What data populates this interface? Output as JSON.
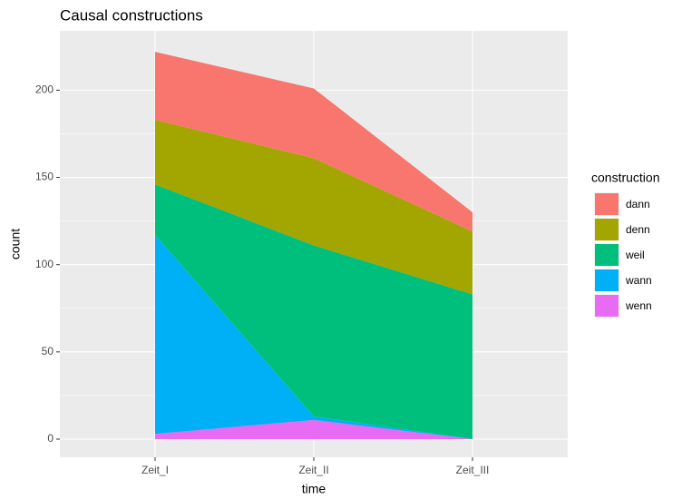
{
  "chart_data": {
    "type": "stacked_area",
    "title": "Causal constructions",
    "x_label": "time",
    "y_label": "count",
    "categories": [
      "Zeit_I",
      "Zeit_II",
      "Zeit_III"
    ],
    "legend_title": "construction",
    "series": [
      {
        "name": "dann",
        "color": "#F8766D",
        "values": [
          39,
          40,
          11
        ]
      },
      {
        "name": "denn",
        "color": "#A3A500",
        "values": [
          37,
          50,
          36
        ]
      },
      {
        "name": "weil",
        "color": "#00BF7D",
        "values": [
          29,
          98,
          83
        ]
      },
      {
        "name": "wann",
        "color": "#00B0F6",
        "values": [
          114,
          2,
          0
        ]
      },
      {
        "name": "wenn",
        "color": "#E76BF3",
        "values": [
          3,
          11,
          0
        ]
      }
    ],
    "ylim": [
      -10.4,
      234
    ],
    "yticks": [
      0,
      50,
      100,
      150,
      200
    ],
    "grid": true,
    "legend": "right"
  }
}
